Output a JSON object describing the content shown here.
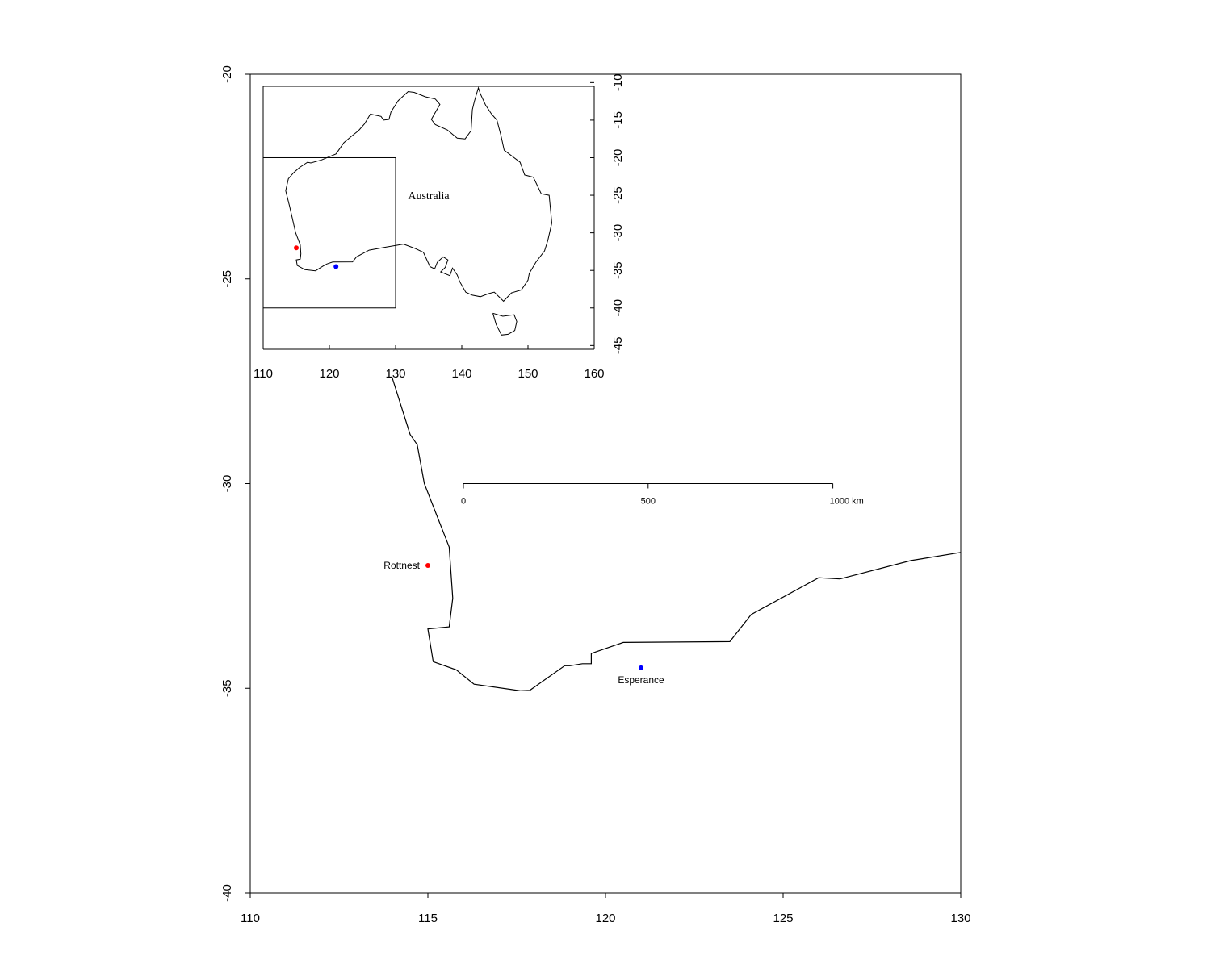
{
  "main_map": {
    "x_ticks": [
      110,
      115,
      120,
      125,
      130
    ],
    "y_ticks": [
      -20,
      -25,
      -30,
      -35,
      -40
    ],
    "xlim": [
      110,
      130
    ],
    "ylim": [
      -40,
      -20
    ],
    "coastline": [
      [
        113.99,
        -27.4
      ],
      [
        114.5,
        -28.8
      ],
      [
        114.7,
        -29.05
      ],
      [
        114.9,
        -30.0
      ],
      [
        115.6,
        -31.55
      ],
      [
        115.7,
        -32.8
      ],
      [
        115.6,
        -33.5
      ],
      [
        115.0,
        -33.55
      ],
      [
        115.15,
        -34.35
      ],
      [
        115.8,
        -34.55
      ],
      [
        116.3,
        -34.9
      ],
      [
        117.6,
        -35.06
      ],
      [
        117.87,
        -35.05
      ],
      [
        118.85,
        -34.45
      ],
      [
        119.0,
        -34.45
      ],
      [
        119.35,
        -34.4
      ],
      [
        119.6,
        -34.4
      ],
      [
        119.6,
        -34.15
      ],
      [
        120.5,
        -33.88
      ],
      [
        123.5,
        -33.86
      ],
      [
        124.1,
        -33.2
      ],
      [
        126.0,
        -32.3
      ],
      [
        126.6,
        -32.33
      ],
      [
        128.6,
        -31.88
      ],
      [
        130.0,
        -31.68
      ]
    ],
    "sites": [
      {
        "name": "Rottnest",
        "lon": 115.0,
        "lat": -32.0,
        "color": "#ff0000",
        "label_side": "left"
      },
      {
        "name": "Esperance",
        "lon": 121.0,
        "lat": -34.5,
        "color": "#0000ff",
        "label_side": "below"
      }
    ],
    "scale_bar": {
      "labels": [
        "0",
        "500",
        "1000 km"
      ],
      "lon_start": 116.0,
      "lon_end": 126.4,
      "lat": -30.0
    }
  },
  "inset_map": {
    "x_ticks": [
      110,
      120,
      130,
      140,
      150,
      160
    ],
    "y_ticks": [
      -10,
      -15,
      -20,
      -25,
      -30,
      -35,
      -40,
      -45
    ],
    "xlim": [
      110,
      160
    ],
    "ylim": [
      -45.5,
      -10.5
    ],
    "country_label": "Australia",
    "country_label_pos": [
      135.0,
      -25.0
    ],
    "extent_box": [
      110,
      130,
      -40,
      -20
    ],
    "sites": [
      {
        "lon": 115.0,
        "lat": -32.0,
        "color": "#ff0000"
      },
      {
        "lon": 121.0,
        "lat": -34.5,
        "color": "#0000ff"
      }
    ],
    "outline": [
      [
        129.0,
        -14.9
      ],
      [
        128.2,
        -15.0
      ],
      [
        127.8,
        -14.5
      ],
      [
        126.2,
        -14.2
      ],
      [
        125.3,
        -15.5
      ],
      [
        124.4,
        -16.4
      ],
      [
        123.4,
        -17.1
      ],
      [
        122.2,
        -18.0
      ],
      [
        121.0,
        -19.5
      ],
      [
        118.8,
        -20.3
      ],
      [
        117.2,
        -20.7
      ],
      [
        116.7,
        -20.6
      ],
      [
        115.5,
        -21.3
      ],
      [
        114.6,
        -22.0
      ],
      [
        113.8,
        -22.8
      ],
      [
        113.4,
        -24.4
      ],
      [
        114.0,
        -26.5
      ],
      [
        114.6,
        -28.8
      ],
      [
        114.9,
        -30.0
      ],
      [
        115.6,
        -31.6
      ],
      [
        115.7,
        -32.8
      ],
      [
        115.6,
        -33.5
      ],
      [
        115.0,
        -33.6
      ],
      [
        115.15,
        -34.35
      ],
      [
        116.3,
        -34.9
      ],
      [
        117.9,
        -35.05
      ],
      [
        119.0,
        -34.45
      ],
      [
        119.6,
        -34.15
      ],
      [
        120.5,
        -33.88
      ],
      [
        123.5,
        -33.86
      ],
      [
        124.1,
        -33.2
      ],
      [
        126.0,
        -32.3
      ],
      [
        128.6,
        -31.9
      ],
      [
        131.2,
        -31.5
      ],
      [
        133.0,
        -32.1
      ],
      [
        134.2,
        -32.6
      ],
      [
        135.2,
        -34.5
      ],
      [
        135.9,
        -34.8
      ],
      [
        136.3,
        -33.9
      ],
      [
        137.2,
        -33.2
      ],
      [
        137.9,
        -33.6
      ],
      [
        137.5,
        -34.6
      ],
      [
        136.8,
        -35.2
      ],
      [
        138.2,
        -35.7
      ],
      [
        138.6,
        -34.7
      ],
      [
        139.3,
        -35.6
      ],
      [
        139.7,
        -36.5
      ],
      [
        140.6,
        -37.9
      ],
      [
        141.6,
        -38.3
      ],
      [
        142.8,
        -38.5
      ],
      [
        144.0,
        -38.1
      ],
      [
        144.9,
        -37.9
      ],
      [
        146.3,
        -39.1
      ],
      [
        147.5,
        -38.0
      ],
      [
        149.0,
        -37.6
      ],
      [
        150.0,
        -36.3
      ],
      [
        150.2,
        -35.4
      ],
      [
        151.2,
        -33.9
      ],
      [
        152.5,
        -32.4
      ],
      [
        153.0,
        -31.0
      ],
      [
        153.6,
        -28.7
      ],
      [
        153.2,
        -25.0
      ],
      [
        152.0,
        -24.8
      ],
      [
        150.8,
        -22.6
      ],
      [
        149.5,
        -22.3
      ],
      [
        148.8,
        -20.6
      ],
      [
        146.4,
        -19.0
      ],
      [
        145.9,
        -17.0
      ],
      [
        145.3,
        -15.0
      ],
      [
        144.5,
        -14.2
      ],
      [
        143.6,
        -13.0
      ],
      [
        142.8,
        -11.5
      ],
      [
        142.5,
        -10.7
      ],
      [
        141.9,
        -12.5
      ],
      [
        141.6,
        -13.6
      ],
      [
        141.4,
        -16.4
      ],
      [
        140.5,
        -17.5
      ],
      [
        139.3,
        -17.4
      ],
      [
        137.8,
        -16.3
      ],
      [
        136.0,
        -15.6
      ],
      [
        135.4,
        -14.9
      ],
      [
        136.7,
        -12.9
      ],
      [
        136.0,
        -12.2
      ],
      [
        134.5,
        -11.9
      ],
      [
        132.8,
        -11.3
      ],
      [
        131.9,
        -11.2
      ],
      [
        130.4,
        -12.4
      ],
      [
        129.3,
        -13.9
      ]
    ],
    "tasmania": [
      [
        144.7,
        -40.7
      ],
      [
        146.2,
        -41.1
      ],
      [
        147.9,
        -40.9
      ],
      [
        148.3,
        -41.8
      ],
      [
        148.0,
        -43.0
      ],
      [
        147.0,
        -43.5
      ],
      [
        146.0,
        -43.6
      ],
      [
        145.2,
        -42.2
      ],
      [
        144.7,
        -40.7
      ]
    ]
  }
}
